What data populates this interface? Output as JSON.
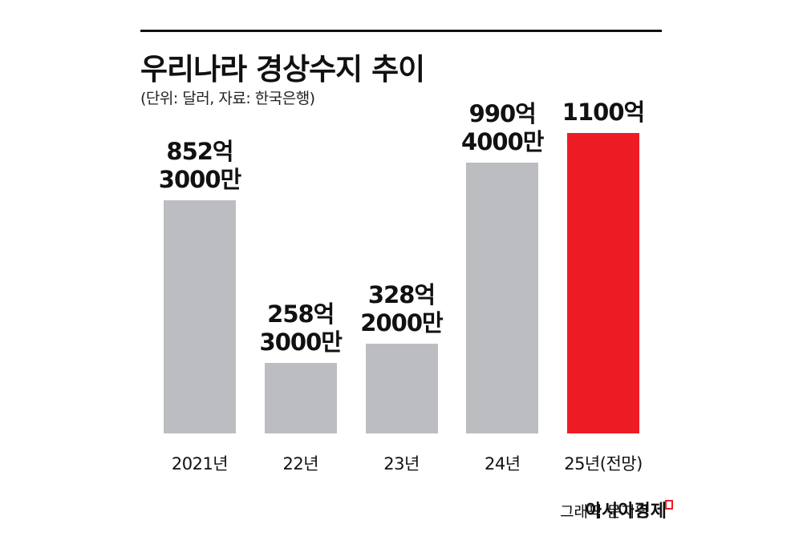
{
  "chart_data": {
    "type": "bar",
    "title": "우리나라 경상수지 추이",
    "subtitle": "(단위: 달러, 자료: 한국은행)",
    "categories": [
      "2021년",
      "22년",
      "23년",
      "24년",
      "25년(전망)"
    ],
    "values": [
      852.3,
      258.3,
      328.2,
      990.4,
      1100
    ],
    "value_labels": [
      "852억\n3000만",
      "258억\n3000만",
      "328억\n2000만",
      "990억\n4000만",
      "1100억"
    ],
    "colors": [
      "#bcbdc0",
      "#bcbdc0",
      "#bcbdc0",
      "#bcbdc0",
      "#ed1c24"
    ],
    "credit": "그래픽 문지원",
    "source_brand": "아시아경제"
  }
}
